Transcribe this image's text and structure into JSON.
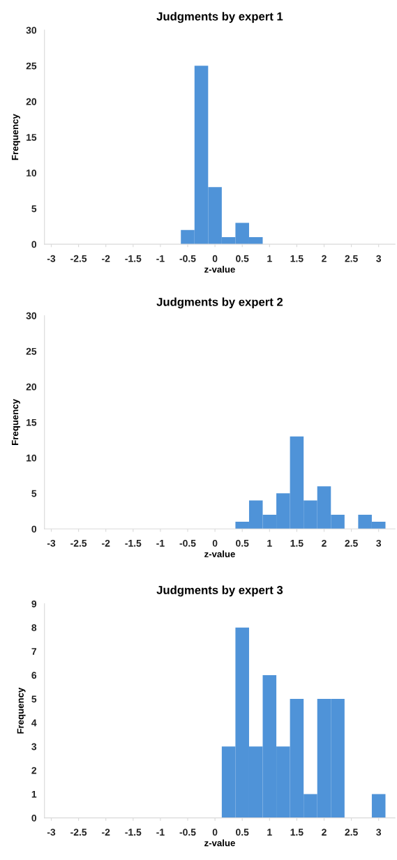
{
  "chart_data": [
    {
      "type": "histogram",
      "title": "Judgments by expert 1",
      "xlabel": "z-value",
      "ylabel": "Frequency",
      "bins": [
        -0.625,
        -0.375,
        -0.125,
        0.125,
        0.375,
        0.625,
        0.875
      ],
      "values": [
        2,
        25,
        8,
        1,
        3,
        1
      ],
      "color": "#4f93d8",
      "xlim": [
        -3.125,
        3.3
      ],
      "xticks": [
        -3,
        -2.5,
        -2,
        -1.5,
        -1,
        -0.5,
        0,
        0.5,
        1,
        1.5,
        2,
        2.5,
        3
      ],
      "ylim": [
        0,
        30
      ],
      "yticks": [
        0,
        5,
        10,
        15,
        20,
        25,
        30
      ],
      "grid": false
    },
    {
      "type": "histogram",
      "title": "Judgments by expert 2",
      "xlabel": "z-value",
      "ylabel": "Frequency",
      "bins": [
        0.375,
        0.625,
        0.875,
        1.125,
        1.375,
        1.625,
        1.875,
        2.125,
        2.375,
        2.625,
        2.875,
        3.125
      ],
      "values": [
        1,
        4,
        2,
        5,
        13,
        4,
        6,
        2,
        0,
        2,
        1
      ],
      "color": "#4f93d8",
      "xlim": [
        -3.125,
        3.3
      ],
      "xticks": [
        -3,
        -2.5,
        -2,
        -1.5,
        -1,
        -0.5,
        0,
        0.5,
        1,
        1.5,
        2,
        2.5,
        3
      ],
      "ylim": [
        0,
        30
      ],
      "yticks": [
        0,
        5,
        10,
        15,
        20,
        25,
        30
      ],
      "grid": false
    },
    {
      "type": "histogram",
      "title": "Judgments by expert 3",
      "xlabel": "z-value",
      "ylabel": "Frequency",
      "bins": [
        0.125,
        0.375,
        0.625,
        0.875,
        1.125,
        1.375,
        1.625,
        1.875,
        2.125,
        2.375,
        2.625,
        2.875,
        3.125
      ],
      "values": [
        3,
        8,
        3,
        6,
        3,
        5,
        1,
        5,
        5,
        0,
        0,
        1
      ],
      "color": "#4f93d8",
      "xlim": [
        -3.125,
        3.3
      ],
      "xticks": [
        -3,
        -2.5,
        -2,
        -1.5,
        -1,
        -0.5,
        0,
        0.5,
        1,
        1.5,
        2,
        2.5,
        3
      ],
      "ylim": [
        0,
        9
      ],
      "yticks": [
        0,
        1,
        2,
        3,
        4,
        5,
        6,
        7,
        8,
        9
      ],
      "grid": false
    }
  ]
}
